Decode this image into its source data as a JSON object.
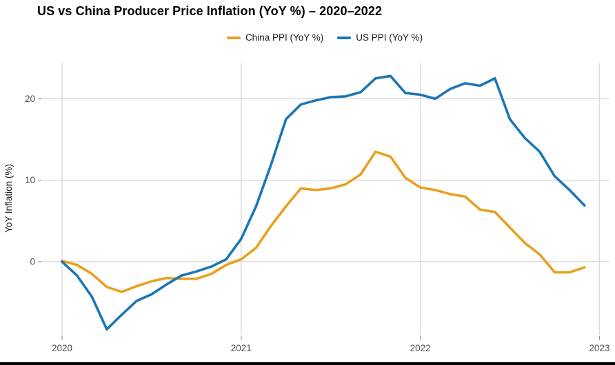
{
  "chart_data": {
    "type": "line",
    "title": "US vs China Producer Price Inflation (YoY %) – 2020–2022",
    "xlabel": "",
    "ylabel": "YoY Inflation (%)",
    "x_unit": "month",
    "months": [
      "2020-01",
      "2020-02",
      "2020-03",
      "2020-04",
      "2020-05",
      "2020-06",
      "2020-07",
      "2020-08",
      "2020-09",
      "2020-10",
      "2020-11",
      "2020-12",
      "2021-01",
      "2021-02",
      "2021-03",
      "2021-04",
      "2021-05",
      "2021-06",
      "2021-07",
      "2021-08",
      "2021-09",
      "2021-10",
      "2021-11",
      "2021-12",
      "2022-01",
      "2022-02",
      "2022-03",
      "2022-04",
      "2022-05",
      "2022-06",
      "2022-07",
      "2022-08",
      "2022-09",
      "2022-10",
      "2022-11",
      "2022-12"
    ],
    "x_tick_labels": [
      "2020",
      "2021",
      "2022",
      "2023"
    ],
    "x_tick_months": [
      0,
      12,
      24,
      36
    ],
    "y_ticks": [
      0,
      10,
      20
    ],
    "y_tick_labels": [
      "0",
      "10",
      "20"
    ],
    "ylim": [
      -9.3,
      24.3
    ],
    "grid": true,
    "legend_position": "top",
    "series": [
      {
        "id": "china-ppi",
        "name": "China PPI (YoY %)",
        "color": "#E8A01D",
        "values": [
          0.1,
          -0.4,
          -1.5,
          -3.1,
          -3.7,
          -3.0,
          -2.4,
          -2.0,
          -2.1,
          -2.1,
          -1.5,
          -0.4,
          0.3,
          1.7,
          4.4,
          6.8,
          9.0,
          8.8,
          9.0,
          9.5,
          10.7,
          13.5,
          12.9,
          10.3,
          9.1,
          8.8,
          8.3,
          8.0,
          6.4,
          6.1,
          4.2,
          2.3,
          0.9,
          -1.3,
          -1.3,
          -0.7
        ]
      },
      {
        "id": "us-ppi",
        "name": "US PPI (YoY %)",
        "color": "#1B76B4",
        "values": [
          0.0,
          -1.7,
          -4.3,
          -8.3,
          -6.5,
          -4.8,
          -4.0,
          -2.8,
          -1.7,
          -1.2,
          -0.6,
          0.3,
          2.8,
          6.8,
          11.9,
          17.5,
          19.3,
          19.8,
          20.2,
          20.3,
          20.8,
          22.5,
          22.8,
          20.7,
          20.5,
          20.0,
          21.2,
          21.9,
          21.6,
          22.5,
          17.5,
          15.2,
          13.5,
          10.5,
          8.8,
          6.9
        ]
      }
    ],
    "styles": {
      "grid_color": "#d9d9d9",
      "tick_color": "#9a9a9a",
      "tick_label_color": "#4d4d4d",
      "title_color": "#000000",
      "background": "#ffffff"
    }
  }
}
